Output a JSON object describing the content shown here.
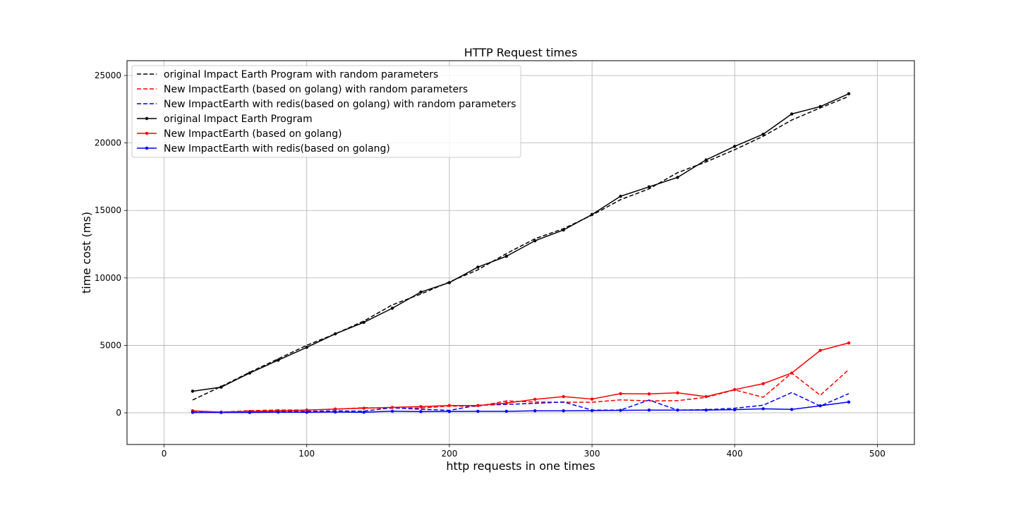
{
  "chart_data": {
    "type": "line",
    "title": "HTTP Request times",
    "xlabel": "http requests in one times",
    "ylabel": "time cost (ms)",
    "xlim": [
      -26,
      526
    ],
    "ylim": [
      -2350,
      26100
    ],
    "xticks": [
      0,
      100,
      200,
      300,
      400,
      500
    ],
    "yticks": [
      0,
      5000,
      10000,
      15000,
      20000,
      25000
    ],
    "grid": true,
    "legend_position": "top-left",
    "x": [
      20,
      40,
      60,
      80,
      100,
      120,
      140,
      160,
      180,
      200,
      220,
      240,
      260,
      280,
      300,
      320,
      340,
      360,
      380,
      400,
      420,
      440,
      460,
      480
    ],
    "series": [
      {
        "name": "original Impact Earth Program with random parameters",
        "color": "#000000",
        "style": "dashed",
        "markers": false,
        "values": [
          950,
          1950,
          3000,
          4000,
          5000,
          5850,
          6800,
          8000,
          8800,
          9700,
          10600,
          11800,
          12900,
          13650,
          14650,
          15800,
          16600,
          17800,
          18600,
          19500,
          20500,
          21700,
          22600,
          23450
        ]
      },
      {
        "name": "New ImpactEarth (based on golang) with random parameters",
        "color": "#ff0000",
        "style": "dashed",
        "markers": false,
        "values": [
          60,
          50,
          160,
          210,
          200,
          260,
          380,
          340,
          350,
          500,
          480,
          880,
          800,
          780,
          780,
          960,
          880,
          900,
          1150,
          1700,
          1150,
          2950,
          1300,
          3200
        ]
      },
      {
        "name": "New ImpactEarth with redis(based on golang) with random parameters",
        "color": "#0000ff",
        "style": "dashed",
        "markers": false,
        "values": [
          20,
          40,
          50,
          100,
          100,
          140,
          120,
          380,
          260,
          180,
          560,
          620,
          700,
          800,
          200,
          200,
          950,
          200,
          230,
          340,
          560,
          1500,
          500,
          1420
        ]
      },
      {
        "name": "original Impact Earth Program",
        "color": "#000000",
        "style": "solid",
        "markers": true,
        "values": [
          1600,
          1900,
          2950,
          3900,
          4850,
          5850,
          6700,
          7750,
          8950,
          9650,
          10800,
          11600,
          12750,
          13550,
          14700,
          16050,
          16750,
          17450,
          18750,
          19750,
          20650,
          22150,
          22700,
          23650
        ]
      },
      {
        "name": "New ImpactEarth (based on golang)",
        "color": "#ff0000",
        "style": "solid",
        "markers": true,
        "values": [
          150,
          50,
          100,
          150,
          200,
          280,
          340,
          400,
          460,
          540,
          540,
          720,
          1000,
          1200,
          1020,
          1420,
          1400,
          1480,
          1200,
          1720,
          2160,
          2950,
          4620,
          5180
        ]
      },
      {
        "name": "New ImpactEarth with redis(based on golang)",
        "color": "#0000ff",
        "style": "solid",
        "markers": true,
        "values": [
          30,
          20,
          20,
          50,
          40,
          60,
          40,
          120,
          90,
          100,
          110,
          110,
          150,
          150,
          160,
          180,
          200,
          200,
          200,
          230,
          300,
          250,
          520,
          800
        ]
      }
    ]
  }
}
